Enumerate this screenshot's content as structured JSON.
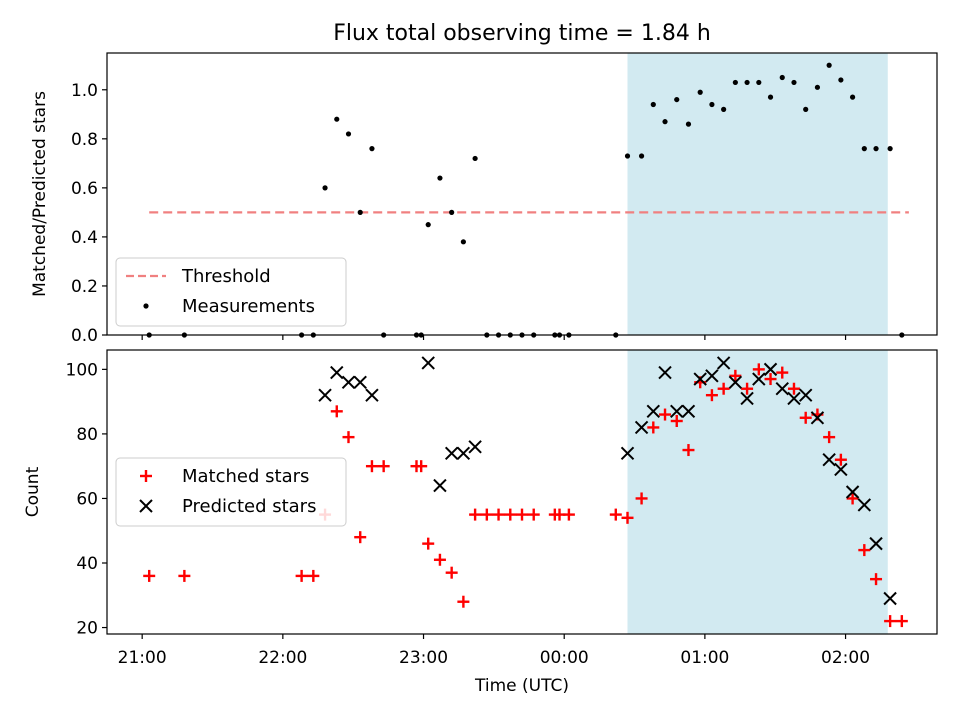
{
  "title": "Flux total observing time = 1.84 h",
  "x_axis": {
    "label": "Time (UTC)",
    "ticks": [
      {
        "t": 0,
        "label": "21:00"
      },
      {
        "t": 60,
        "label": "22:00"
      },
      {
        "t": 120,
        "label": "23:00"
      },
      {
        "t": 180,
        "label": "00:00"
      },
      {
        "t": 240,
        "label": "01:00"
      },
      {
        "t": 300,
        "label": "02:00"
      }
    ]
  },
  "chart_data": [
    {
      "type": "scatter",
      "panel": "top",
      "ylabel": "Matched/Predicted stars",
      "xlim": [
        -15,
        339
      ],
      "ylim": [
        0,
        1.15
      ],
      "yticks": [
        {
          "v": 0,
          "label": "0.0"
        },
        {
          "v": 0.2,
          "label": "0.2"
        },
        {
          "v": 0.4,
          "label": "0.4"
        },
        {
          "v": 0.6,
          "label": "0.6"
        },
        {
          "v": 0.8,
          "label": "0.8"
        },
        {
          "v": 1.0,
          "label": "1.0"
        }
      ],
      "shaded_span": [
        207,
        318
      ],
      "threshold": {
        "name": "Threshold",
        "value": 0.5,
        "x": [
          3,
          327
        ],
        "color": "#f08080"
      },
      "legend": {
        "position": "lower-left",
        "entries": [
          "Threshold",
          "Measurements"
        ]
      },
      "series": [
        {
          "name": "Measurements",
          "color": "#000000",
          "points": [
            [
              3,
              0
            ],
            [
              18,
              0
            ],
            [
              68,
              0
            ],
            [
              73,
              0
            ],
            [
              78,
              0.6
            ],
            [
              83,
              0.88
            ],
            [
              88,
              0.82
            ],
            [
              93,
              0.5
            ],
            [
              98,
              0.76
            ],
            [
              103,
              0
            ],
            [
              117,
              0
            ],
            [
              119,
              0
            ],
            [
              122,
              0.45
            ],
            [
              127,
              0.64
            ],
            [
              132,
              0.5
            ],
            [
              137,
              0.38
            ],
            [
              142,
              0.72
            ],
            [
              147,
              0
            ],
            [
              152,
              0
            ],
            [
              157,
              0
            ],
            [
              162,
              0
            ],
            [
              167,
              0
            ],
            [
              176,
              0
            ],
            [
              178,
              0
            ],
            [
              182,
              0
            ],
            [
              202,
              0
            ],
            [
              207,
              0.73
            ],
            [
              213,
              0.73
            ],
            [
              218,
              0.94
            ],
            [
              223,
              0.87
            ],
            [
              228,
              0.96
            ],
            [
              233,
              0.86
            ],
            [
              238,
              0.99
            ],
            [
              243,
              0.94
            ],
            [
              248,
              0.92
            ],
            [
              253,
              1.03
            ],
            [
              258,
              1.03
            ],
            [
              263,
              1.03
            ],
            [
              268,
              0.97
            ],
            [
              273,
              1.05
            ],
            [
              278,
              1.03
            ],
            [
              283,
              0.92
            ],
            [
              288,
              1.01
            ],
            [
              293,
              1.1
            ],
            [
              298,
              1.04
            ],
            [
              303,
              0.97
            ],
            [
              308,
              0.76
            ],
            [
              313,
              0.76
            ],
            [
              319,
              0.76
            ],
            [
              324,
              0
            ]
          ]
        }
      ]
    },
    {
      "type": "scatter",
      "panel": "bottom",
      "ylabel": "Count",
      "xlim": [
        -15,
        339
      ],
      "ylim": [
        18,
        106
      ],
      "yticks": [
        {
          "v": 20,
          "label": "20"
        },
        {
          "v": 40,
          "label": "40"
        },
        {
          "v": 60,
          "label": "60"
        },
        {
          "v": 80,
          "label": "80"
        },
        {
          "v": 100,
          "label": "100"
        }
      ],
      "shaded_span": [
        207,
        318
      ],
      "legend": {
        "position": "center-left",
        "entries": [
          "Matched stars",
          "Predicted stars"
        ]
      },
      "series": [
        {
          "name": "Matched stars",
          "marker": "plus",
          "color": "#ff0000",
          "points": [
            [
              3,
              36
            ],
            [
              18,
              36
            ],
            [
              68,
              36
            ],
            [
              73,
              36
            ],
            [
              78,
              55
            ],
            [
              83,
              87
            ],
            [
              88,
              79
            ],
            [
              93,
              48
            ],
            [
              98,
              70
            ],
            [
              103,
              70
            ],
            [
              117,
              70
            ],
            [
              119,
              70
            ],
            [
              122,
              46
            ],
            [
              127,
              41
            ],
            [
              132,
              37
            ],
            [
              137,
              28
            ],
            [
              142,
              55
            ],
            [
              147,
              55
            ],
            [
              152,
              55
            ],
            [
              157,
              55
            ],
            [
              162,
              55
            ],
            [
              167,
              55
            ],
            [
              176,
              55
            ],
            [
              178,
              55
            ],
            [
              182,
              55
            ],
            [
              202,
              55
            ],
            [
              207,
              54
            ],
            [
              213,
              60
            ],
            [
              218,
              82
            ],
            [
              223,
              86
            ],
            [
              228,
              84
            ],
            [
              233,
              75
            ],
            [
              238,
              96
            ],
            [
              243,
              92
            ],
            [
              248,
              94
            ],
            [
              253,
              98
            ],
            [
              258,
              94
            ],
            [
              263,
              100
            ],
            [
              268,
              97
            ],
            [
              273,
              99
            ],
            [
              278,
              94
            ],
            [
              283,
              85
            ],
            [
              288,
              86
            ],
            [
              293,
              79
            ],
            [
              298,
              72
            ],
            [
              303,
              60
            ],
            [
              308,
              44
            ],
            [
              313,
              35
            ],
            [
              319,
              22
            ],
            [
              324,
              22
            ]
          ]
        },
        {
          "name": "Predicted stars",
          "marker": "x",
          "color": "#000000",
          "points": [
            [
              78,
              92
            ],
            [
              83,
              99
            ],
            [
              88,
              96
            ],
            [
              93,
              96
            ],
            [
              98,
              92
            ],
            [
              122,
              102
            ],
            [
              127,
              64
            ],
            [
              132,
              74
            ],
            [
              137,
              74
            ],
            [
              142,
              76
            ],
            [
              207,
              74
            ],
            [
              213,
              82
            ],
            [
              218,
              87
            ],
            [
              223,
              99
            ],
            [
              228,
              87
            ],
            [
              233,
              87
            ],
            [
              238,
              97
            ],
            [
              243,
              98
            ],
            [
              248,
              102
            ],
            [
              253,
              96
            ],
            [
              258,
              91
            ],
            [
              263,
              97
            ],
            [
              268,
              100
            ],
            [
              273,
              94
            ],
            [
              278,
              91
            ],
            [
              283,
              92
            ],
            [
              288,
              85
            ],
            [
              293,
              72
            ],
            [
              298,
              69
            ],
            [
              303,
              62
            ],
            [
              308,
              58
            ],
            [
              313,
              46
            ],
            [
              319,
              29
            ]
          ]
        }
      ]
    }
  ]
}
